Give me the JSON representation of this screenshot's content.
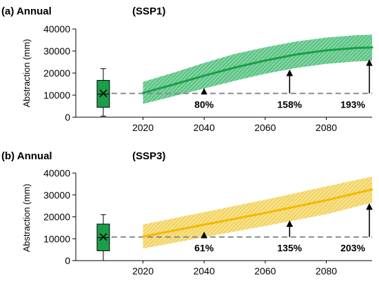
{
  "chart_data": [
    {
      "type": "line",
      "panel_label": "(a) Annual",
      "scenario_label": "(SSP1)",
      "ylabel": "Abstraction (mm)",
      "xlim": [
        1998,
        2095
      ],
      "ylim": [
        0,
        40000
      ],
      "x_ticks": [
        2020,
        2040,
        2060,
        2080
      ],
      "y_ticks": [
        0,
        10000,
        20000,
        30000,
        40000
      ],
      "y_tick_labels": [
        "0",
        "10000",
        "20000",
        "30000",
        "40000"
      ],
      "colors": {
        "line": "#1a9e4a",
        "band": "#46c07a",
        "box": "#1a9e4a"
      },
      "baseline": {
        "value": 10800,
        "box": {
          "x": 2007,
          "min": 500,
          "q1": 4500,
          "median": 10500,
          "mean": 10800,
          "q3": 16700,
          "max": 22000
        }
      },
      "series": [
        {
          "x": [
            2020,
            2030,
            2040,
            2050,
            2060,
            2070,
            2080,
            2090,
            2095
          ],
          "mean": [
            11000,
            14800,
            18800,
            22500,
            25700,
            28400,
            30300,
            31400,
            31600
          ],
          "lower": [
            6000,
            9500,
            13000,
            16500,
            19700,
            22300,
            24200,
            25300,
            25500
          ],
          "upper": [
            16000,
            20200,
            24600,
            28700,
            31700,
            34300,
            36100,
            37200,
            37400
          ]
        }
      ],
      "annotations": [
        {
          "x": 2040,
          "from": 10800,
          "to": 13000,
          "label": "80%"
        },
        {
          "x": 2068,
          "from": 10800,
          "to": 21400,
          "label": "158%"
        },
        {
          "x": 2095,
          "from": 10800,
          "to": 26000,
          "label": "193%"
        }
      ]
    },
    {
      "type": "line",
      "panel_label": "(b) Annual",
      "scenario_label": "(SSP3)",
      "ylabel": "Abstraction (mm)",
      "xlim": [
        1998,
        2095
      ],
      "ylim": [
        0,
        40000
      ],
      "x_ticks": [
        2020,
        2040,
        2060,
        2080
      ],
      "y_ticks": [
        0,
        10000,
        20000,
        30000,
        40000
      ],
      "y_tick_labels": [
        "0",
        "10000",
        "20000",
        "30000",
        "40000"
      ],
      "colors": {
        "line": "#f5b800",
        "band": "#f3d15c",
        "box": "#1a9e4a"
      },
      "baseline": {
        "value": 10800,
        "box": {
          "x": 2007,
          "min": 0,
          "q1": 4500,
          "median": 10500,
          "mean": 10800,
          "q3": 16700,
          "max": 21000
        }
      },
      "series": [
        {
          "x": [
            2020,
            2040,
            2060,
            2080,
            2095
          ],
          "mean": [
            11000,
            16400,
            21800,
            27600,
            32500
          ],
          "lower": [
            5500,
            10700,
            15800,
            21200,
            26500
          ],
          "upper": [
            16500,
            22100,
            27800,
            33900,
            38400
          ]
        }
      ],
      "annotations": [
        {
          "x": 2040,
          "from": 10800,
          "to": 13000,
          "label": "61%"
        },
        {
          "x": 2068,
          "from": 10800,
          "to": 18200,
          "label": "135%"
        },
        {
          "x": 2095,
          "from": 10800,
          "to": 26000,
          "label": "203%"
        }
      ]
    }
  ]
}
